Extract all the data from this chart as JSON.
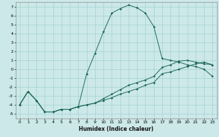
{
  "title": "",
  "xlabel": "Humidex (Indice chaleur)",
  "bg_color": "#cce8e8",
  "grid_color": "#99cccc",
  "line_color": "#1a6655",
  "xlim": [
    -0.5,
    23.5
  ],
  "ylim": [
    -5.5,
    7.5
  ],
  "xticks": [
    0,
    1,
    2,
    3,
    4,
    5,
    6,
    7,
    8,
    9,
    10,
    11,
    12,
    13,
    14,
    15,
    16,
    17,
    18,
    19,
    20,
    21,
    22,
    23
  ],
  "yticks": [
    -5,
    -4,
    -3,
    -2,
    -1,
    0,
    1,
    2,
    3,
    4,
    5,
    6,
    7
  ],
  "x": [
    0,
    1,
    2,
    3,
    4,
    5,
    6,
    7,
    8,
    9,
    10,
    11,
    12,
    13,
    14,
    15,
    16,
    17,
    18,
    19,
    20,
    21,
    22,
    23
  ],
  "line1": [
    -4.0,
    -2.5,
    -3.5,
    -4.8,
    -4.8,
    -4.5,
    -4.5,
    -4.2,
    -0.5,
    1.8,
    4.2,
    6.3,
    6.8,
    7.2,
    6.9,
    6.3,
    4.8,
    1.2,
    1.0,
    0.8,
    0.5,
    0.3,
    0.0,
    -0.8
  ],
  "line2": [
    -4.0,
    -2.5,
    -3.5,
    -4.8,
    -4.8,
    -4.5,
    -4.5,
    -4.2,
    -4.0,
    -3.8,
    -3.5,
    -3.2,
    -2.8,
    -2.5,
    -2.2,
    -1.8,
    -1.5,
    -0.5,
    -0.3,
    0.0,
    0.3,
    0.6,
    0.8,
    0.5
  ],
  "line3": [
    -4.0,
    -2.5,
    -3.5,
    -4.8,
    -4.8,
    -4.5,
    -4.5,
    -4.2,
    -4.0,
    -3.8,
    -3.3,
    -2.8,
    -2.3,
    -1.8,
    -1.5,
    -1.2,
    -0.8,
    0.2,
    0.5,
    0.9,
    1.0,
    0.8,
    0.6,
    0.5
  ],
  "xlabel_fontsize": 5.5,
  "tick_fontsize": 4.5,
  "linewidth": 0.7,
  "markersize": 1.8
}
